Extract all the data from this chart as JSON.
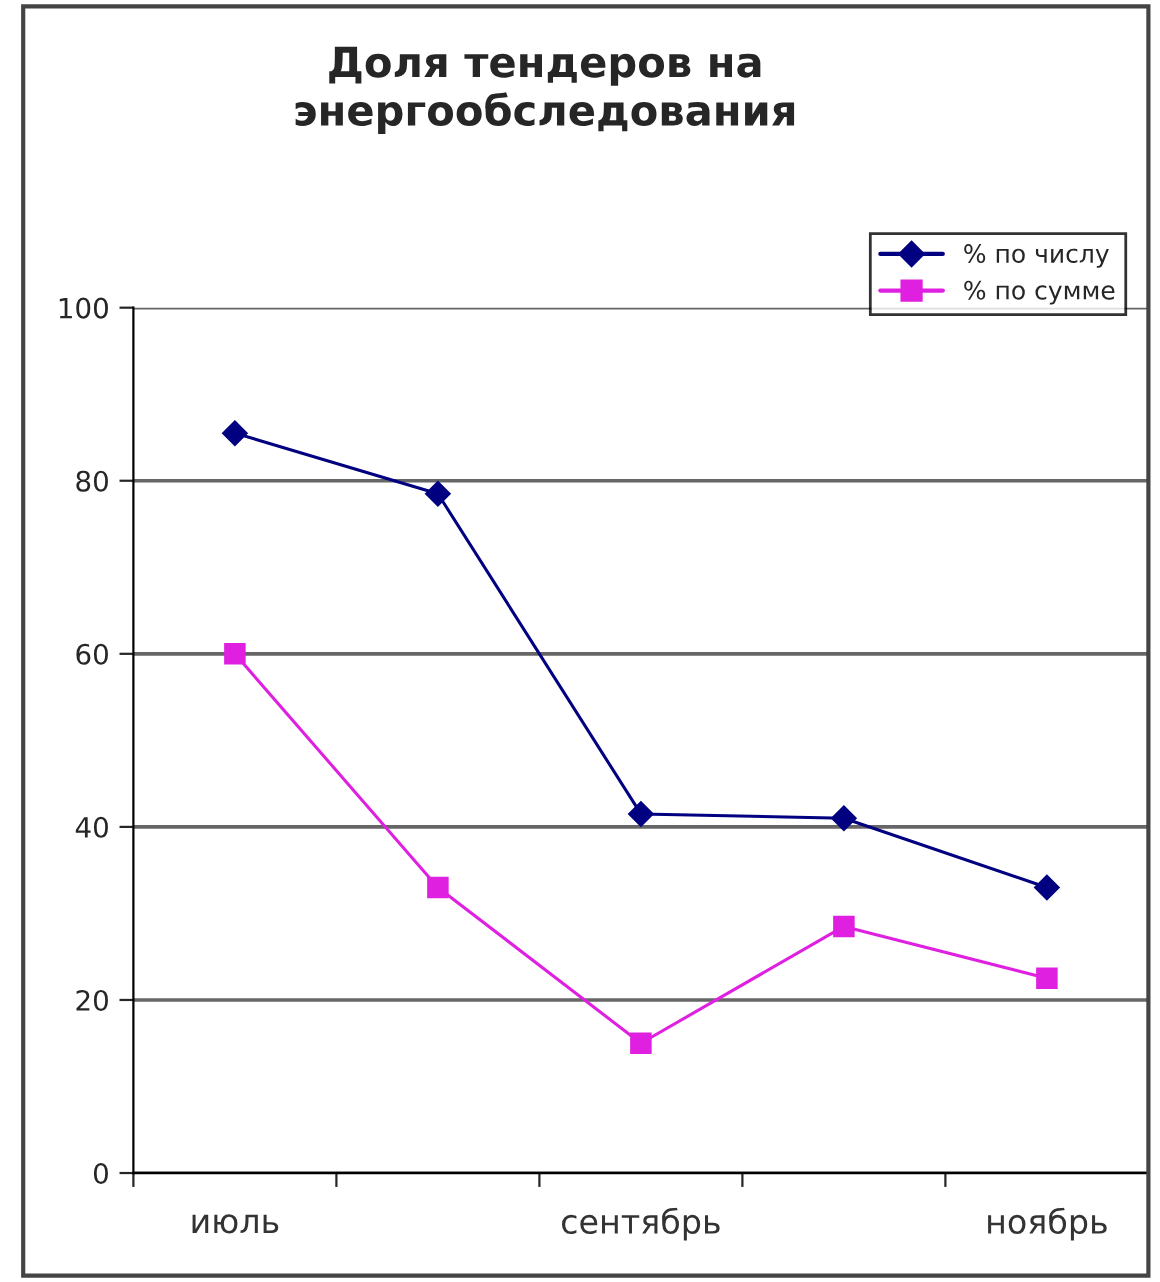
{
  "chart_data": {
    "type": "line",
    "title": "Доля тендеров на\nэнергообследования",
    "categories": [
      "июль",
      null,
      "сентябрь",
      null,
      "ноябрь"
    ],
    "series": [
      {
        "name": "% по числу",
        "color": "#000080",
        "marker": "diamond",
        "values": [
          85.5,
          78.5,
          41.5,
          41,
          33
        ]
      },
      {
        "name": "% по сумме",
        "color": "#e020e0",
        "marker": "square",
        "values": [
          60,
          33,
          15,
          28.5,
          22.5
        ]
      }
    ],
    "ylim": [
      0,
      100
    ],
    "yticks": [
      0,
      20,
      40,
      60,
      80,
      100
    ],
    "grid": "y",
    "legend": "top right",
    "line_style": "solid"
  }
}
